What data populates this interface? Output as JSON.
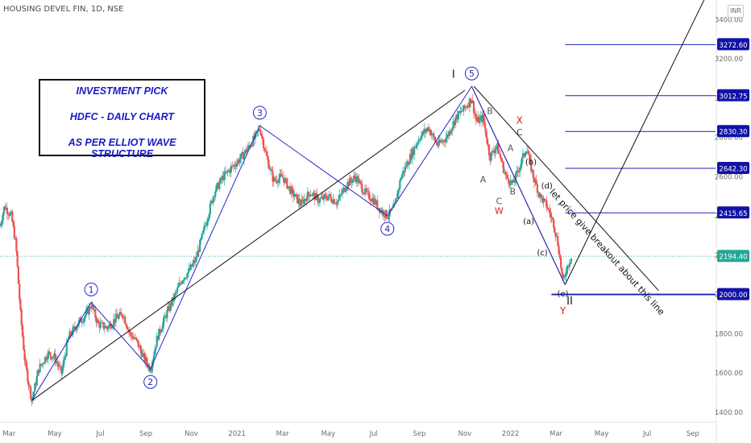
{
  "header": {
    "symbol_line": "HOUSING DEVEL FIN, 1D, NSE",
    "currency": "INR"
  },
  "note_box": {
    "line1": "INVESTMENT PICK",
    "line2": "HDFC - DAILY CHART",
    "line3": "AS PER ELLIOT WAVE STRUCTURE"
  },
  "chart_data": {
    "type": "line",
    "title": "HOUSING DEVEL FIN, 1D, NSE",
    "y_ticks": [
      1400,
      1600,
      1800,
      2000,
      2200,
      2400,
      2600,
      2800,
      3000,
      3200,
      3400
    ],
    "y_tick_labels": [
      "1400.00",
      "1600.00",
      "1800.00",
      "2000.00",
      "2200.00",
      "2400.00",
      "2600.00",
      "2800.00",
      "3000.00",
      "3200.00",
      "3400.00"
    ],
    "ylim": [
      1350,
      3500
    ],
    "x_labels": [
      "Mar",
      "May",
      "Jul",
      "Sep",
      "Nov",
      "2021",
      "Mar",
      "May",
      "Jul",
      "Sep",
      "Nov",
      "2022",
      "Mar",
      "May",
      "Jul",
      "Sep"
    ],
    "x_label_pos": [
      0,
      2,
      4,
      6,
      8,
      10,
      12,
      14,
      16,
      18,
      20,
      22,
      24,
      26,
      28,
      30
    ],
    "x_range_months": [
      -0.4,
      31
    ],
    "last_price": 2194.4,
    "last_price_label": "2194.40",
    "price_series_approx": [
      [
        -0.4,
        2350
      ],
      [
        -0.2,
        2450
      ],
      [
        0.1,
        2400
      ],
      [
        0.3,
        2250
      ],
      [
        0.5,
        1900
      ],
      [
        0.7,
        1650
      ],
      [
        0.9,
        1520
      ],
      [
        1.0,
        1460
      ],
      [
        1.3,
        1620
      ],
      [
        1.7,
        1700
      ],
      [
        2.0,
        1680
      ],
      [
        2.3,
        1600
      ],
      [
        2.6,
        1780
      ],
      [
        3.0,
        1850
      ],
      [
        3.4,
        1900
      ],
      [
        3.6,
        1950
      ],
      [
        3.9,
        1850
      ],
      [
        4.3,
        1830
      ],
      [
        4.7,
        1880
      ],
      [
        5.0,
        1900
      ],
      [
        5.3,
        1800
      ],
      [
        5.6,
        1760
      ],
      [
        5.9,
        1680
      ],
      [
        6.2,
        1620
      ],
      [
        6.5,
        1780
      ],
      [
        6.9,
        1900
      ],
      [
        7.3,
        2000
      ],
      [
        7.6,
        2080
      ],
      [
        7.9,
        2120
      ],
      [
        8.2,
        2180
      ],
      [
        8.6,
        2350
      ],
      [
        9.0,
        2520
      ],
      [
        9.4,
        2600
      ],
      [
        9.8,
        2650
      ],
      [
        10.2,
        2700
      ],
      [
        10.5,
        2750
      ],
      [
        10.8,
        2800
      ],
      [
        11.0,
        2850
      ],
      [
        11.3,
        2700
      ],
      [
        11.6,
        2580
      ],
      [
        12.0,
        2600
      ],
      [
        12.4,
        2520
      ],
      [
        12.8,
        2460
      ],
      [
        13.2,
        2520
      ],
      [
        13.6,
        2480
      ],
      [
        14.0,
        2500
      ],
      [
        14.4,
        2470
      ],
      [
        14.8,
        2560
      ],
      [
        15.2,
        2600
      ],
      [
        15.6,
        2520
      ],
      [
        16.0,
        2480
      ],
      [
        16.3,
        2430
      ],
      [
        16.6,
        2400
      ],
      [
        16.9,
        2440
      ],
      [
        17.2,
        2600
      ],
      [
        17.6,
        2700
      ],
      [
        18.0,
        2800
      ],
      [
        18.4,
        2850
      ],
      [
        18.8,
        2760
      ],
      [
        19.2,
        2800
      ],
      [
        19.6,
        2900
      ],
      [
        20.0,
        2950
      ],
      [
        20.3,
        3000
      ],
      [
        20.5,
        2880
      ],
      [
        20.8,
        2900
      ],
      [
        21.1,
        2700
      ],
      [
        21.4,
        2760
      ],
      [
        21.8,
        2600
      ],
      [
        22.1,
        2560
      ],
      [
        22.4,
        2650
      ],
      [
        22.7,
        2750
      ],
      [
        23.0,
        2600
      ],
      [
        23.3,
        2500
      ],
      [
        23.6,
        2450
      ],
      [
        23.9,
        2360
      ],
      [
        24.1,
        2250
      ],
      [
        24.3,
        2060
      ],
      [
        24.5,
        2150
      ],
      [
        24.7,
        2194
      ]
    ],
    "wave_points": [
      {
        "label": "",
        "x": 1.0,
        "y": 1460
      },
      {
        "label": "1",
        "x": 3.6,
        "y": 1960
      },
      {
        "label": "2",
        "x": 6.2,
        "y": 1620
      },
      {
        "label": "3",
        "x": 11.0,
        "y": 2860
      },
      {
        "label": "4",
        "x": 16.6,
        "y": 2400
      },
      {
        "label": "5",
        "x": 20.3,
        "y": 3060
      },
      {
        "label": "",
        "x": 24.4,
        "y": 2050
      }
    ],
    "trend_lines": [
      {
        "from": [
          1.0,
          1460
        ],
        "to": [
          20.0,
          3040
        ],
        "color": "#111111"
      },
      {
        "from": [
          20.3,
          3060
        ],
        "to": [
          24.4,
          2050
        ],
        "color": "#111111"
      },
      {
        "from": [
          24.4,
          2050
        ],
        "to": [
          31.0,
          3620
        ],
        "color": "#111111"
      },
      {
        "from": [
          20.4,
          3060
        ],
        "to": [
          28.5,
          2020
        ],
        "color": "#111111"
      }
    ],
    "horizontal_levels": [
      {
        "value": 3272.6,
        "label": "3272.60",
        "from_x": 24.4
      },
      {
        "value": 3012.75,
        "label": "3012.75",
        "from_x": 24.4
      },
      {
        "value": 2830.3,
        "label": "2830.30",
        "from_x": 24.4
      },
      {
        "value": 2642.3,
        "label": "2642.30",
        "from_x": 24.4
      },
      {
        "value": 2415.65,
        "label": "2415.65",
        "from_x": 24.4
      },
      {
        "value": 2000.0,
        "label": "2000.00",
        "from_x": 23.8,
        "bold": true
      }
    ],
    "annotations": [
      {
        "text": "I",
        "x": 19.5,
        "y": 3105,
        "color": "#111111",
        "size": 13
      },
      {
        "text": "B",
        "x": 21.1,
        "y": 2920,
        "color": "#555555",
        "size": 11
      },
      {
        "text": "X",
        "x": 22.4,
        "y": 2870,
        "color": "#d42020",
        "size": 12
      },
      {
        "text": "C",
        "x": 22.4,
        "y": 2810,
        "color": "#555555",
        "size": 11
      },
      {
        "text": "A",
        "x": 22.0,
        "y": 2730,
        "color": "#555555",
        "size": 11
      },
      {
        "text": "(b)",
        "x": 22.9,
        "y": 2660,
        "color": "#111111",
        "size": 10
      },
      {
        "text": "A",
        "x": 20.8,
        "y": 2570,
        "color": "#555555",
        "size": 11
      },
      {
        "text": "B",
        "x": 22.1,
        "y": 2510,
        "color": "#555555",
        "size": 11
      },
      {
        "text": "(d)",
        "x": 23.6,
        "y": 2540,
        "color": "#111111",
        "size": 10
      },
      {
        "text": "C",
        "x": 21.5,
        "y": 2460,
        "color": "#555555",
        "size": 11
      },
      {
        "text": "W",
        "x": 21.5,
        "y": 2410,
        "color": "#d42020",
        "size": 11
      },
      {
        "text": "(a)",
        "x": 22.8,
        "y": 2360,
        "color": "#111111",
        "size": 10
      },
      {
        "text": "(c)",
        "x": 23.4,
        "y": 2200,
        "color": "#111111",
        "size": 10
      },
      {
        "text": "(e)",
        "x": 24.3,
        "y": 1990,
        "color": "#111111",
        "size": 10
      },
      {
        "text": "II",
        "x": 24.6,
        "y": 1950,
        "color": "#111111",
        "size": 13
      },
      {
        "text": "Y",
        "x": 24.3,
        "y": 1900,
        "color": "#d42020",
        "size": 12
      }
    ],
    "rotated_note": "let price give breakout about this line",
    "colors": {
      "up": "#26a69a",
      "down": "#ef5350",
      "wave": "#2727c7",
      "level": "#1f1fc0",
      "trend": "#111111"
    }
  }
}
